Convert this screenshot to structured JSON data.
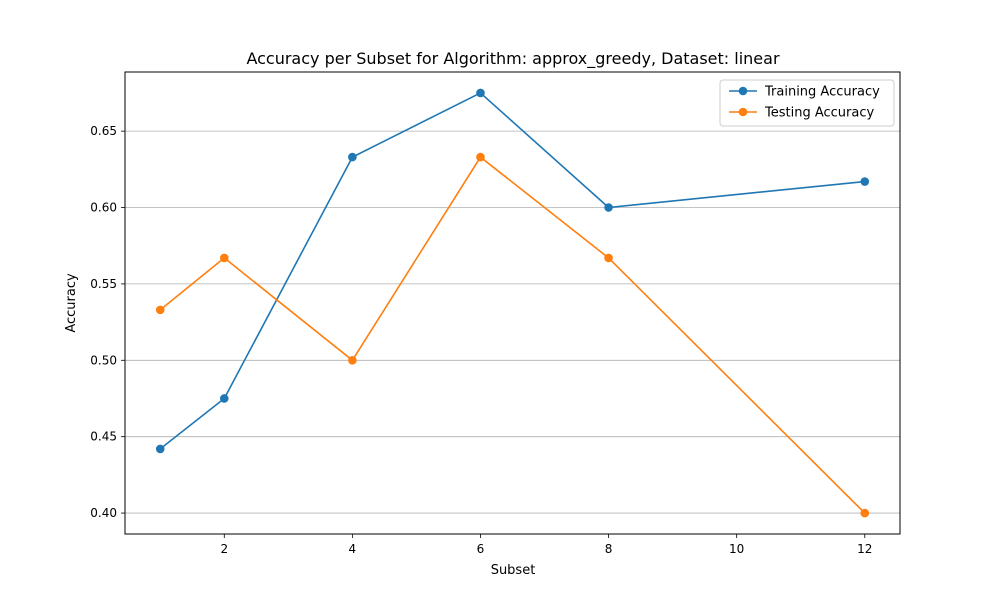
{
  "chart_data": {
    "type": "line",
    "title": "Accuracy per Subset for Algorithm: approx_greedy, Dataset: linear",
    "xlabel": "Subset",
    "ylabel": "Accuracy",
    "x": [
      1,
      2,
      4,
      6,
      8,
      12
    ],
    "xlim": [
      0.45,
      12.55
    ],
    "ylim": [
      0.3863,
      0.6887
    ],
    "xticks": [
      2,
      4,
      6,
      8,
      10,
      12
    ],
    "yticks": [
      0.4,
      0.45,
      0.5,
      0.55,
      0.6,
      0.65
    ],
    "ytick_labels": [
      "0.40",
      "0.45",
      "0.50",
      "0.55",
      "0.60",
      "0.65"
    ],
    "grid": "y-major",
    "legend_position": "top-right",
    "series": [
      {
        "name": "Training Accuracy",
        "color": "#1f77b4",
        "values": [
          0.442,
          0.475,
          0.633,
          0.675,
          0.6,
          0.617
        ]
      },
      {
        "name": "Testing Accuracy",
        "color": "#ff7f0e",
        "values": [
          0.533,
          0.567,
          0.5,
          0.633,
          0.567,
          0.4
        ]
      }
    ]
  }
}
